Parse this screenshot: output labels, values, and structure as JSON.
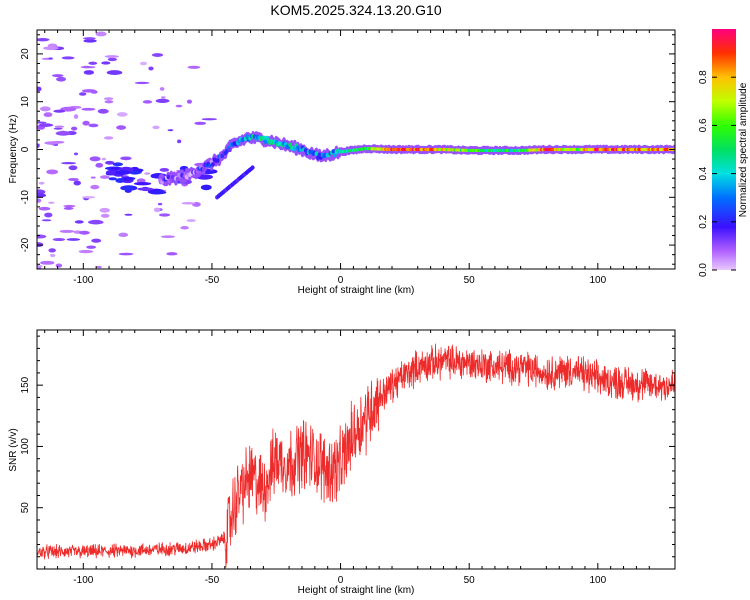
{
  "title": "KOM5.2025.324.13.20.G10",
  "chart_data": [
    {
      "type": "heatmap",
      "xlabel": "Height of straight line (km)",
      "ylabel": "Frequency (Hz)",
      "xlim": [
        -118,
        130
      ],
      "ylim": [
        -25,
        25
      ],
      "xticks": [
        -100,
        -50,
        0,
        50,
        100
      ],
      "yticks": [
        -20,
        -10,
        0,
        10,
        20
      ],
      "colorbar": {
        "label": "Normalized spectral amplitude",
        "range": [
          0,
          1
        ],
        "ticks": [
          "0.0",
          "0.2",
          "0.4",
          "0.6",
          "0.8"
        ],
        "tick_values": [
          0,
          0.2,
          0.4,
          0.6,
          0.8
        ]
      },
      "ridge": [
        {
          "x": -70,
          "y": -6.5,
          "a": 0.1
        },
        {
          "x": -60,
          "y": -5.5,
          "a": 0.12
        },
        {
          "x": -52,
          "y": -3.5,
          "a": 0.15
        },
        {
          "x": -46,
          "y": -1.5,
          "a": 0.18
        },
        {
          "x": -42,
          "y": 1.0,
          "a": 0.25
        },
        {
          "x": -36,
          "y": 2.5,
          "a": 0.35
        },
        {
          "x": -28,
          "y": 2.0,
          "a": 0.45
        },
        {
          "x": -22,
          "y": 1.0,
          "a": 0.4
        },
        {
          "x": -15,
          "y": 0.0,
          "a": 0.35
        },
        {
          "x": -8,
          "y": -1.5,
          "a": 0.3
        },
        {
          "x": 0,
          "y": -0.5,
          "a": 0.4
        },
        {
          "x": 10,
          "y": 0.2,
          "a": 0.55
        },
        {
          "x": 20,
          "y": 0.0,
          "a": 0.95
        },
        {
          "x": 30,
          "y": 0.0,
          "a": 0.9
        },
        {
          "x": 40,
          "y": 0.0,
          "a": 0.75
        },
        {
          "x": 50,
          "y": -0.2,
          "a": 0.55
        },
        {
          "x": 60,
          "y": -0.2,
          "a": 0.5
        },
        {
          "x": 70,
          "y": -0.2,
          "a": 0.5
        },
        {
          "x": 80,
          "y": 0.0,
          "a": 0.9
        },
        {
          "x": 90,
          "y": 0.0,
          "a": 0.6
        },
        {
          "x": 100,
          "y": 0.0,
          "a": 0.9
        },
        {
          "x": 110,
          "y": 0.0,
          "a": 0.85
        },
        {
          "x": 120,
          "y": 0.0,
          "a": 0.8
        },
        {
          "x": 130,
          "y": 0.0,
          "a": 0.8
        }
      ]
    },
    {
      "type": "line",
      "xlabel": "Height of straight line (km)",
      "ylabel": "SNR (v/v)",
      "xlim": [
        -118,
        130
      ],
      "ylim": [
        0,
        195
      ],
      "xticks": [
        -100,
        -50,
        0,
        50,
        100
      ],
      "yticks": [
        50,
        100,
        150
      ],
      "series": [
        {
          "name": "SNR",
          "color": "#ee2b2b",
          "x": [
            -118,
            -100,
            -80,
            -60,
            -50,
            -45,
            -40,
            -35,
            -30,
            -25,
            -20,
            -15,
            -10,
            -5,
            0,
            5,
            10,
            15,
            20,
            25,
            30,
            40,
            50,
            60,
            70,
            80,
            90,
            100,
            110,
            120,
            130
          ],
          "values": [
            14,
            14,
            15,
            17,
            20,
            25,
            60,
            75,
            65,
            90,
            85,
            95,
            90,
            80,
            85,
            110,
            125,
            140,
            150,
            158,
            165,
            170,
            168,
            165,
            165,
            160,
            162,
            155,
            152,
            150,
            150
          ]
        }
      ]
    }
  ]
}
